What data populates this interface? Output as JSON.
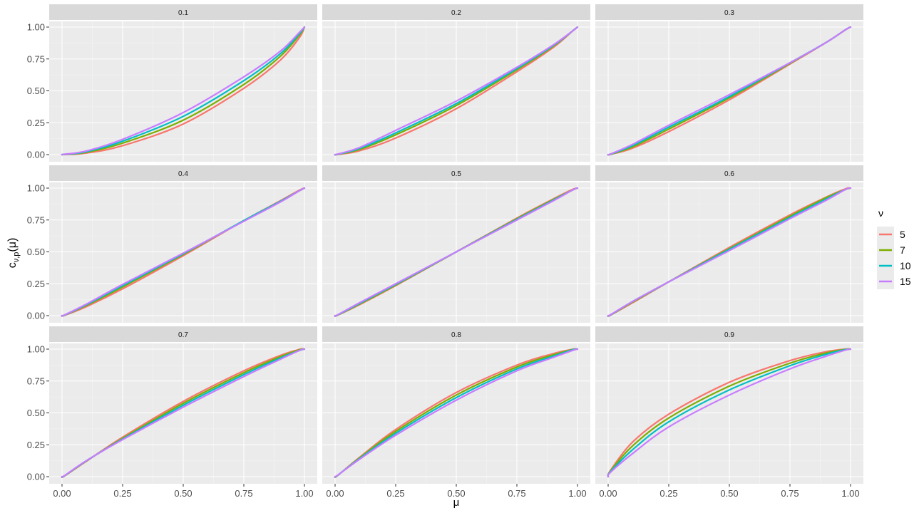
{
  "chart_data": {
    "type": "line",
    "facet_variable": "p",
    "panels": [
      "0.1",
      "0.2",
      "0.3",
      "0.4",
      "0.5",
      "0.6",
      "0.7",
      "0.8",
      "0.9"
    ],
    "xlabel": "μ",
    "ylabel": "c",
    "ylabel_subscript": "ν,p",
    "ylabel_suffix": "(μ)",
    "x_ticks": [
      "0.00",
      "0.25",
      "0.50",
      "0.75",
      "1.00"
    ],
    "y_ticks": [
      "0.00",
      "0.25",
      "0.50",
      "0.75",
      "1.00"
    ],
    "xlim": [
      0,
      1
    ],
    "ylim": [
      0,
      1
    ],
    "grid": true,
    "legend": {
      "title": "ν",
      "position": "right",
      "entries": [
        "5",
        "7",
        "10",
        "15"
      ]
    },
    "series": [
      {
        "name": "5",
        "color": "#F8766D"
      },
      {
        "name": "7",
        "color": "#7CAE00"
      },
      {
        "name": "10",
        "color": "#00BFC4"
      },
      {
        "name": "15",
        "color": "#C77CFF"
      }
    ],
    "x": [
      0,
      0.01,
      0.1,
      0.25,
      0.5,
      0.75,
      0.9,
      0.98,
      1
    ],
    "values": {
      "0.1": {
        "5": [
          0,
          0.001,
          0.012,
          0.07,
          0.24,
          0.52,
          0.74,
          0.92,
          1
        ],
        "7": [
          0,
          0.002,
          0.018,
          0.09,
          0.27,
          0.55,
          0.77,
          0.94,
          1
        ],
        "10": [
          0,
          0.002,
          0.023,
          0.105,
          0.3,
          0.58,
          0.79,
          0.95,
          1
        ],
        "15": [
          0,
          0.003,
          0.028,
          0.12,
          0.33,
          0.61,
          0.81,
          0.96,
          1
        ]
      },
      "0.2": {
        "5": [
          0,
          0.001,
          0.03,
          0.13,
          0.36,
          0.65,
          0.84,
          0.97,
          1
        ],
        "7": [
          0,
          0.002,
          0.04,
          0.155,
          0.385,
          0.665,
          0.85,
          0.97,
          1
        ],
        "10": [
          0,
          0.003,
          0.048,
          0.17,
          0.4,
          0.675,
          0.855,
          0.97,
          1
        ],
        "15": [
          0,
          0.004,
          0.055,
          0.19,
          0.42,
          0.685,
          0.86,
          0.97,
          1
        ]
      },
      "0.3": {
        "5": [
          0,
          0.002,
          0.05,
          0.18,
          0.43,
          0.71,
          0.88,
          0.98,
          1
        ],
        "7": [
          0,
          0.003,
          0.06,
          0.2,
          0.445,
          0.715,
          0.88,
          0.98,
          1
        ],
        "10": [
          0,
          0.004,
          0.07,
          0.215,
          0.455,
          0.72,
          0.88,
          0.98,
          1
        ],
        "15": [
          0,
          0.005,
          0.08,
          0.23,
          0.47,
          0.72,
          0.88,
          0.98,
          1
        ]
      },
      "0.4": {
        "5": [
          0,
          0.002,
          0.07,
          0.21,
          0.47,
          0.745,
          0.9,
          0.985,
          1
        ],
        "7": [
          0,
          0.003,
          0.08,
          0.225,
          0.48,
          0.745,
          0.895,
          0.98,
          1
        ],
        "10": [
          0,
          0.004,
          0.085,
          0.235,
          0.485,
          0.745,
          0.895,
          0.98,
          1
        ],
        "15": [
          0,
          0.005,
          0.09,
          0.245,
          0.49,
          0.74,
          0.89,
          0.98,
          1
        ]
      },
      "0.5": {
        "5": [
          0,
          0.003,
          0.085,
          0.235,
          0.5,
          0.765,
          0.915,
          0.99,
          1
        ],
        "7": [
          0,
          0.004,
          0.09,
          0.24,
          0.5,
          0.76,
          0.91,
          0.985,
          1
        ],
        "10": [
          0,
          0.005,
          0.095,
          0.245,
          0.5,
          0.755,
          0.905,
          0.985,
          1
        ],
        "15": [
          0,
          0.006,
          0.1,
          0.25,
          0.5,
          0.75,
          0.9,
          0.985,
          1
        ]
      },
      "0.6": {
        "5": [
          0,
          0.004,
          0.1,
          0.265,
          0.535,
          0.79,
          0.93,
          0.995,
          1
        ],
        "7": [
          0,
          0.005,
          0.105,
          0.265,
          0.525,
          0.78,
          0.925,
          0.99,
          1
        ],
        "10": [
          0,
          0.006,
          0.11,
          0.265,
          0.52,
          0.77,
          0.915,
          0.99,
          1
        ],
        "15": [
          0,
          0.007,
          0.11,
          0.265,
          0.51,
          0.76,
          0.905,
          0.99,
          1
        ]
      },
      "0.7": {
        "5": [
          0,
          0.005,
          0.12,
          0.31,
          0.59,
          0.83,
          0.95,
          0.998,
          1
        ],
        "7": [
          0,
          0.006,
          0.122,
          0.3,
          0.575,
          0.815,
          0.94,
          0.995,
          1
        ],
        "10": [
          0,
          0.007,
          0.124,
          0.295,
          0.56,
          0.8,
          0.93,
          0.99,
          1
        ],
        "15": [
          0,
          0.008,
          0.125,
          0.29,
          0.545,
          0.785,
          0.92,
          0.99,
          1
        ]
      },
      "0.8": {
        "5": [
          0,
          0.008,
          0.15,
          0.37,
          0.66,
          0.875,
          0.965,
          0.999,
          1
        ],
        "7": [
          0,
          0.009,
          0.145,
          0.355,
          0.64,
          0.86,
          0.955,
          0.997,
          1
        ],
        "10": [
          0,
          0.01,
          0.14,
          0.34,
          0.62,
          0.845,
          0.945,
          0.995,
          1
        ],
        "15": [
          0,
          0.011,
          0.135,
          0.325,
          0.6,
          0.83,
          0.935,
          0.99,
          1
        ]
      },
      "0.9": {
        "5": [
          0,
          0.05,
          0.27,
          0.49,
          0.74,
          0.91,
          0.98,
          1.0,
          1
        ],
        "7": [
          0,
          0.045,
          0.24,
          0.46,
          0.71,
          0.89,
          0.97,
          0.998,
          1
        ],
        "10": [
          0,
          0.04,
          0.21,
          0.43,
          0.68,
          0.87,
          0.96,
          0.996,
          1
        ],
        "15": [
          0,
          0.035,
          0.18,
          0.39,
          0.64,
          0.845,
          0.945,
          0.993,
          1
        ]
      }
    }
  }
}
